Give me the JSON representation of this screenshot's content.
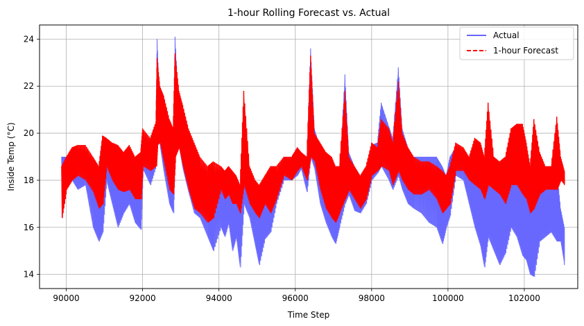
{
  "chart_data": {
    "type": "line",
    "title": "1-hour Rolling Forecast vs. Actual",
    "xlabel": "Time Step",
    "ylabel": "Inside Temp (°C)",
    "xlim": [
      89300,
      103400
    ],
    "ylim": [
      13.4,
      24.6
    ],
    "xticks": [
      90000,
      92000,
      94000,
      96000,
      98000,
      100000,
      102000
    ],
    "yticks": [
      14,
      16,
      18,
      20,
      22,
      24
    ],
    "grid": true,
    "legend_position": "top-right",
    "series": [
      {
        "name": "Actual",
        "color": "#6666ff",
        "style": "solid",
        "band": [
          [
            89880,
            16.4,
            19.0
          ],
          [
            90000,
            18.2,
            19.0
          ],
          [
            90150,
            18.0,
            19.0
          ],
          [
            90300,
            17.6,
            18.4
          ],
          [
            90500,
            17.8,
            18.6
          ],
          [
            90700,
            16.0,
            18.2
          ],
          [
            90850,
            15.4,
            18.0
          ],
          [
            90950,
            15.8,
            18.2
          ],
          [
            91050,
            18.0,
            19.4
          ],
          [
            91200,
            17.0,
            18.6
          ],
          [
            91350,
            16.0,
            18.0
          ],
          [
            91500,
            16.6,
            18.0
          ],
          [
            91650,
            17.0,
            18.0
          ],
          [
            91800,
            16.2,
            18.0
          ],
          [
            91950,
            15.9,
            18.0
          ],
          [
            92000,
            18.5,
            19.6
          ],
          [
            92200,
            17.8,
            19.2
          ],
          [
            92350,
            18.6,
            20.4
          ],
          [
            92380,
            20.5,
            24.0
          ],
          [
            92450,
            19.5,
            21.0
          ],
          [
            92550,
            18.4,
            21.0
          ],
          [
            92700,
            17.0,
            20.0
          ],
          [
            92800,
            16.6,
            19.0
          ],
          [
            92850,
            20.0,
            24.1
          ],
          [
            92950,
            19.5,
            21.0
          ],
          [
            93050,
            18.5,
            21.0
          ],
          [
            93200,
            17.5,
            20.0
          ],
          [
            93350,
            16.6,
            19.0
          ],
          [
            93500,
            16.4,
            18.5
          ],
          [
            93700,
            15.6,
            18.4
          ],
          [
            93850,
            15.0,
            18.2
          ],
          [
            94050,
            16.0,
            18.0
          ],
          [
            94150,
            15.6,
            17.6
          ],
          [
            94250,
            16.2,
            17.6
          ],
          [
            94350,
            15.0,
            17.6
          ],
          [
            94450,
            15.6,
            17.0
          ],
          [
            94550,
            14.3,
            17.0
          ],
          [
            94650,
            17.0,
            19.5
          ],
          [
            94800,
            16.4,
            18.2
          ],
          [
            94950,
            15.2,
            17.6
          ],
          [
            95050,
            14.4,
            17.0
          ],
          [
            95200,
            15.5,
            17.0
          ],
          [
            95350,
            15.8,
            17.0
          ],
          [
            95500,
            17.0,
            18.0
          ],
          [
            95700,
            18.0,
            19.0
          ],
          [
            95900,
            18.0,
            18.8
          ],
          [
            96050,
            18.2,
            19.4
          ],
          [
            96150,
            18.5,
            19.2
          ],
          [
            96300,
            17.5,
            19.0
          ],
          [
            96400,
            19.0,
            23.6
          ],
          [
            96500,
            18.5,
            20.2
          ],
          [
            96650,
            17.0,
            19.4
          ],
          [
            96800,
            16.2,
            19.0
          ],
          [
            96950,
            15.6,
            18.6
          ],
          [
            97050,
            15.3,
            18.0
          ],
          [
            97150,
            16.0,
            18.0
          ],
          [
            97300,
            17.0,
            22.5
          ],
          [
            97400,
            17.4,
            19.2
          ],
          [
            97550,
            16.7,
            18.6
          ],
          [
            97700,
            16.6,
            18.2
          ],
          [
            97850,
            17.0,
            18.4
          ],
          [
            98000,
            18.0,
            19.5
          ],
          [
            98150,
            18.3,
            19.6
          ],
          [
            98250,
            18.6,
            21.3
          ],
          [
            98450,
            18.0,
            20.3
          ],
          [
            98550,
            17.6,
            19.8
          ],
          [
            98700,
            18.2,
            22.8
          ],
          [
            98800,
            17.6,
            20.2
          ],
          [
            98950,
            17.0,
            19.4
          ],
          [
            99100,
            16.8,
            19.0
          ],
          [
            99300,
            16.6,
            19.0
          ],
          [
            99500,
            16.2,
            19.0
          ],
          [
            99700,
            16.0,
            19.0
          ],
          [
            99850,
            15.3,
            18.6
          ],
          [
            99950,
            16.0,
            18.2
          ],
          [
            100050,
            16.5,
            19.0
          ],
          [
            100200,
            18.2,
            19.4
          ],
          [
            100400,
            18.0,
            19.2
          ],
          [
            100550,
            17.0,
            19.0
          ],
          [
            100700,
            16.0,
            18.6
          ],
          [
            100850,
            15.2,
            18.4
          ],
          [
            100950,
            14.3,
            17.6
          ],
          [
            101050,
            15.6,
            19.0
          ],
          [
            101200,
            15.0,
            18.4
          ],
          [
            101350,
            14.4,
            18.0
          ],
          [
            101500,
            14.9,
            18.4
          ],
          [
            101650,
            16.0,
            18.2
          ],
          [
            101800,
            15.6,
            18.4
          ],
          [
            101950,
            14.8,
            18.0
          ],
          [
            102050,
            14.6,
            17.6
          ],
          [
            102150,
            14.0,
            17.2
          ],
          [
            102250,
            13.9,
            18.2
          ],
          [
            102400,
            15.4,
            18.4
          ],
          [
            102550,
            15.6,
            17.6
          ],
          [
            102700,
            15.8,
            17.6
          ],
          [
            102850,
            15.4,
            18.5
          ],
          [
            102950,
            15.4,
            16.8
          ],
          [
            103050,
            14.4,
            16.0
          ]
        ]
      },
      {
        "name": "1-hour Forecast",
        "color": "#ff0000",
        "style": "dashed",
        "band": [
          [
            89880,
            16.4,
            18.6
          ],
          [
            90000,
            17.6,
            19.0
          ],
          [
            90150,
            18.0,
            19.4
          ],
          [
            90300,
            18.2,
            19.5
          ],
          [
            90500,
            18.0,
            19.5
          ],
          [
            90700,
            17.5,
            19.0
          ],
          [
            90850,
            16.8,
            18.6
          ],
          [
            90950,
            17.0,
            19.9
          ],
          [
            91050,
            18.6,
            19.8
          ],
          [
            91200,
            18.0,
            19.6
          ],
          [
            91350,
            17.6,
            19.5
          ],
          [
            91500,
            17.5,
            19.2
          ],
          [
            91650,
            17.6,
            19.5
          ],
          [
            91800,
            17.2,
            19.0
          ],
          [
            91950,
            17.2,
            19.2
          ],
          [
            92000,
            18.6,
            20.2
          ],
          [
            92200,
            18.4,
            19.8
          ],
          [
            92350,
            18.6,
            20.5
          ],
          [
            92380,
            19.5,
            23.2
          ],
          [
            92450,
            19.6,
            22.0
          ],
          [
            92550,
            18.8,
            21.6
          ],
          [
            92700,
            17.6,
            20.6
          ],
          [
            92800,
            17.4,
            20.2
          ],
          [
            92850,
            19.0,
            23.4
          ],
          [
            92950,
            19.4,
            21.8
          ],
          [
            93050,
            18.6,
            21.2
          ],
          [
            93200,
            17.6,
            20.2
          ],
          [
            93350,
            16.8,
            19.6
          ],
          [
            93500,
            16.6,
            19.0
          ],
          [
            93700,
            16.2,
            18.6
          ],
          [
            93850,
            16.4,
            18.8
          ],
          [
            94050,
            17.6,
            18.6
          ],
          [
            94150,
            17.2,
            18.4
          ],
          [
            94250,
            17.4,
            18.6
          ],
          [
            94350,
            17.0,
            18.4
          ],
          [
            94450,
            17.0,
            18.2
          ],
          [
            94550,
            16.6,
            17.8
          ],
          [
            94650,
            17.8,
            21.8
          ],
          [
            94800,
            17.0,
            18.6
          ],
          [
            94950,
            16.6,
            18.0
          ],
          [
            95050,
            16.4,
            17.8
          ],
          [
            95200,
            17.0,
            18.2
          ],
          [
            95350,
            16.6,
            18.6
          ],
          [
            95500,
            17.2,
            18.6
          ],
          [
            95700,
            18.2,
            19.0
          ],
          [
            95900,
            18.0,
            19.0
          ],
          [
            96050,
            18.4,
            19.4
          ],
          [
            96150,
            18.6,
            19.2
          ],
          [
            96300,
            18.0,
            19.0
          ],
          [
            96400,
            19.0,
            23.3
          ],
          [
            96500,
            18.8,
            20.0
          ],
          [
            96650,
            17.6,
            19.6
          ],
          [
            96800,
            16.8,
            19.2
          ],
          [
            96950,
            16.4,
            19.0
          ],
          [
            97050,
            16.2,
            18.6
          ],
          [
            97150,
            16.6,
            18.6
          ],
          [
            97300,
            17.2,
            21.8
          ],
          [
            97400,
            17.6,
            19.0
          ],
          [
            97550,
            17.2,
            18.6
          ],
          [
            97700,
            16.8,
            18.2
          ],
          [
            97850,
            17.2,
            18.6
          ],
          [
            98000,
            18.2,
            19.6
          ],
          [
            98150,
            18.4,
            19.4
          ],
          [
            98250,
            18.6,
            20.6
          ],
          [
            98450,
            18.4,
            20.2
          ],
          [
            98550,
            17.8,
            19.6
          ],
          [
            98700,
            18.4,
            22.2
          ],
          [
            98800,
            18.0,
            20.0
          ],
          [
            98950,
            17.6,
            19.4
          ],
          [
            99100,
            17.4,
            19.0
          ],
          [
            99300,
            17.4,
            18.8
          ],
          [
            99500,
            17.6,
            18.8
          ],
          [
            99700,
            17.2,
            18.6
          ],
          [
            99850,
            16.6,
            18.4
          ],
          [
            99950,
            16.8,
            18.2
          ],
          [
            100050,
            17.0,
            18.6
          ],
          [
            100200,
            18.4,
            19.6
          ],
          [
            100400,
            18.4,
            19.4
          ],
          [
            100550,
            18.0,
            19.0
          ],
          [
            100700,
            17.8,
            19.8
          ],
          [
            100850,
            17.6,
            19.6
          ],
          [
            100950,
            17.2,
            19.0
          ],
          [
            101050,
            17.8,
            21.3
          ],
          [
            101200,
            17.6,
            19.0
          ],
          [
            101350,
            17.4,
            18.8
          ],
          [
            101500,
            17.0,
            19.0
          ],
          [
            101650,
            17.8,
            20.2
          ],
          [
            101800,
            17.8,
            20.4
          ],
          [
            101950,
            17.4,
            20.4
          ],
          [
            102050,
            17.2,
            19.6
          ],
          [
            102150,
            16.6,
            18.6
          ],
          [
            102250,
            16.8,
            20.6
          ],
          [
            102400,
            17.4,
            19.2
          ],
          [
            102550,
            17.6,
            18.6
          ],
          [
            102700,
            17.6,
            18.6
          ],
          [
            102850,
            17.6,
            20.7
          ],
          [
            102950,
            18.0,
            19.0
          ],
          [
            103050,
            17.8,
            18.4
          ]
        ]
      }
    ]
  }
}
